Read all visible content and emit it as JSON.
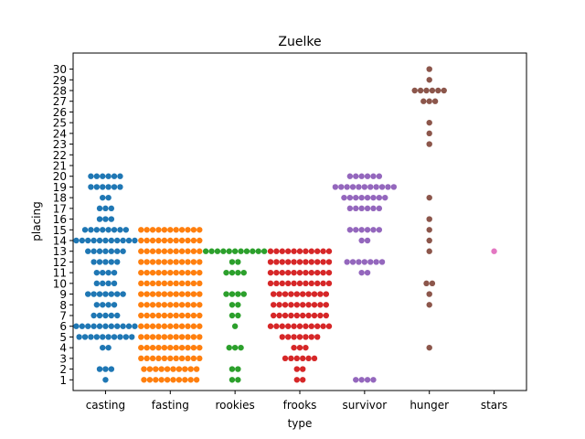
{
  "chart_data": {
    "type": "scatter",
    "subtype": "swarm",
    "title": "Zuelke",
    "xlabel": "type",
    "ylabel": "placing",
    "categories": [
      "casting",
      "fasting",
      "rookies",
      "frooks",
      "survivor",
      "hunger",
      "stars"
    ],
    "yticks": [
      1,
      2,
      3,
      4,
      5,
      6,
      7,
      8,
      9,
      10,
      11,
      12,
      13,
      14,
      15,
      16,
      17,
      18,
      19,
      20,
      21,
      22,
      23,
      24,
      25,
      26,
      27,
      28,
      29,
      30
    ],
    "ylim": [
      0,
      31.5
    ],
    "grid": false,
    "legend": "none",
    "colors": [
      "#1f77b4",
      "#ff7f0e",
      "#2ca02c",
      "#d62728",
      "#9467bd",
      "#8c564b",
      "#e377c2"
    ],
    "series": [
      {
        "values": [
          1,
          2,
          2,
          2,
          4,
          4,
          5,
          5,
          5,
          5,
          5,
          5,
          5,
          5,
          5,
          5,
          6,
          6,
          6,
          6,
          6,
          6,
          6,
          6,
          6,
          6,
          6,
          7,
          7,
          7,
          7,
          7,
          8,
          8,
          8,
          8,
          9,
          9,
          9,
          9,
          9,
          9,
          9,
          10,
          10,
          10,
          10,
          11,
          11,
          11,
          11,
          12,
          12,
          12,
          12,
          12,
          13,
          13,
          13,
          13,
          13,
          13,
          13,
          14,
          14,
          14,
          14,
          14,
          14,
          14,
          14,
          14,
          14,
          14,
          15,
          15,
          15,
          15,
          15,
          15,
          15,
          15,
          16,
          16,
          16,
          17,
          17,
          17,
          18,
          18,
          19,
          19,
          19,
          19,
          19,
          19,
          20,
          20,
          20,
          20,
          20,
          20
        ]
      },
      {
        "values": [
          1,
          1,
          1,
          1,
          1,
          1,
          1,
          1,
          1,
          1,
          2,
          2,
          2,
          2,
          2,
          2,
          2,
          2,
          2,
          2,
          3,
          3,
          3,
          3,
          3,
          3,
          3,
          3,
          3,
          3,
          3,
          4,
          4,
          4,
          4,
          4,
          4,
          4,
          4,
          4,
          4,
          4,
          5,
          5,
          5,
          5,
          5,
          5,
          5,
          5,
          5,
          5,
          5,
          6,
          6,
          6,
          6,
          6,
          6,
          6,
          6,
          6,
          6,
          6,
          7,
          7,
          7,
          7,
          7,
          7,
          7,
          7,
          7,
          7,
          7,
          8,
          8,
          8,
          8,
          8,
          8,
          8,
          8,
          8,
          8,
          8,
          9,
          9,
          9,
          9,
          9,
          9,
          9,
          9,
          9,
          9,
          9,
          10,
          10,
          10,
          10,
          10,
          10,
          10,
          10,
          10,
          10,
          10,
          11,
          11,
          11,
          11,
          11,
          11,
          11,
          11,
          11,
          11,
          11,
          12,
          12,
          12,
          12,
          12,
          12,
          12,
          12,
          12,
          12,
          12,
          13,
          13,
          13,
          13,
          13,
          13,
          13,
          13,
          13,
          13,
          13,
          14,
          14,
          14,
          14,
          14,
          14,
          14,
          14,
          14,
          14,
          14,
          15,
          15,
          15,
          15,
          15,
          15,
          15,
          15,
          15,
          15,
          15
        ]
      },
      {
        "values": [
          1,
          1,
          2,
          2,
          4,
          4,
          4,
          6,
          7,
          7,
          8,
          8,
          9,
          9,
          9,
          9,
          11,
          11,
          11,
          11,
          12,
          12,
          13,
          13,
          13,
          13,
          13,
          13,
          13,
          13,
          13,
          13,
          13
        ]
      },
      {
        "values": [
          1,
          1,
          2,
          2,
          3,
          3,
          3,
          3,
          3,
          3,
          4,
          4,
          4,
          5,
          5,
          5,
          5,
          5,
          5,
          5,
          6,
          6,
          6,
          6,
          6,
          6,
          6,
          6,
          6,
          6,
          6,
          7,
          7,
          7,
          7,
          7,
          7,
          7,
          7,
          7,
          7,
          8,
          8,
          8,
          8,
          8,
          8,
          8,
          8,
          8,
          8,
          9,
          9,
          9,
          9,
          9,
          9,
          9,
          9,
          9,
          9,
          10,
          10,
          10,
          10,
          10,
          10,
          10,
          10,
          10,
          10,
          10,
          11,
          11,
          11,
          11,
          11,
          11,
          11,
          11,
          11,
          11,
          11,
          12,
          12,
          12,
          12,
          12,
          12,
          12,
          12,
          12,
          12,
          12,
          13,
          13,
          13,
          13,
          13,
          13,
          13,
          13,
          13,
          13,
          13
        ]
      },
      {
        "values": [
          1,
          1,
          1,
          1,
          11,
          11,
          12,
          12,
          12,
          12,
          12,
          12,
          12,
          14,
          14,
          15,
          15,
          15,
          15,
          15,
          15,
          17,
          17,
          17,
          17,
          17,
          17,
          18,
          18,
          18,
          18,
          18,
          18,
          18,
          18,
          19,
          19,
          19,
          19,
          19,
          19,
          19,
          19,
          19,
          19,
          19,
          20,
          20,
          20,
          20,
          20,
          20
        ]
      },
      {
        "values": [
          4,
          8,
          9,
          10,
          10,
          13,
          14,
          15,
          16,
          18,
          23,
          24,
          25,
          27,
          27,
          27,
          28,
          28,
          28,
          28,
          28,
          28,
          29,
          30
        ]
      },
      {
        "values": [
          13
        ]
      }
    ]
  }
}
